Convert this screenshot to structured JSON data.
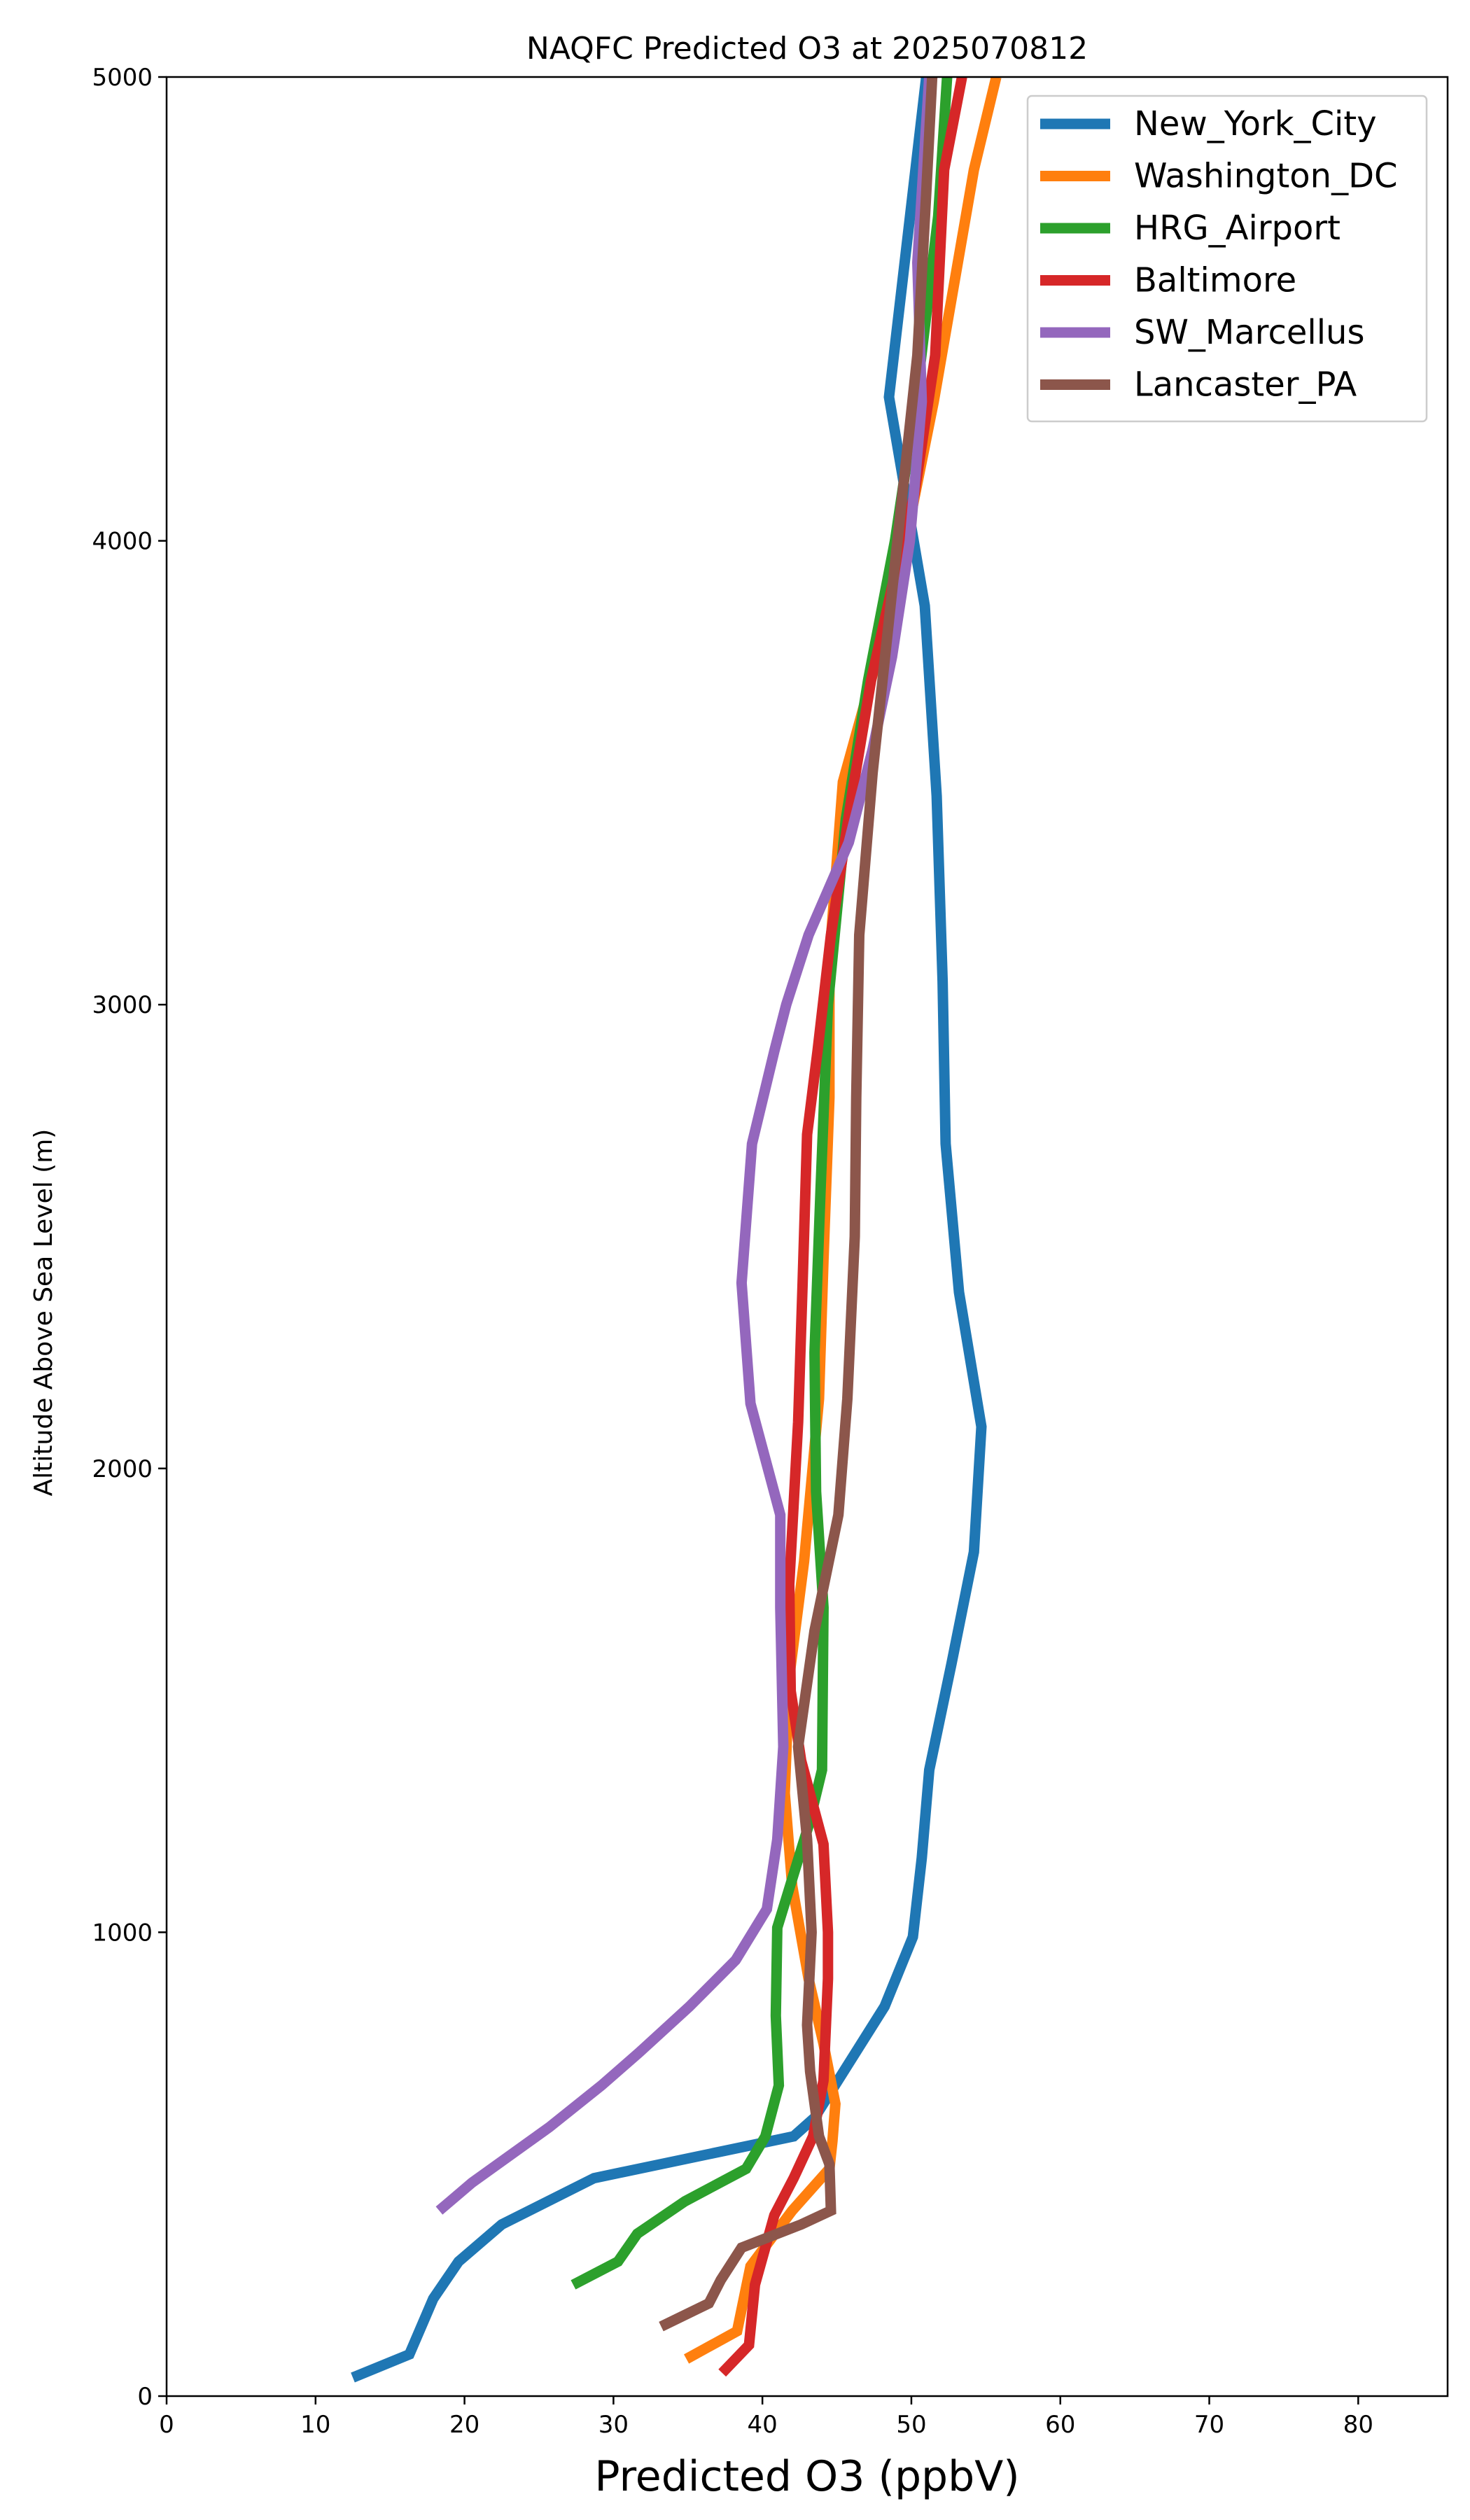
{
  "chart_data": {
    "type": "line",
    "title": "NAQFC Predicted O3 at 2025070812",
    "xlabel": "Predicted O3 (ppbV)",
    "ylabel": "Altitude Above Sea Level (m)",
    "xlim": [
      0,
      86
    ],
    "ylim": [
      0,
      5000
    ],
    "xticks": [
      0,
      10,
      20,
      30,
      40,
      50,
      60,
      70,
      80
    ],
    "yticks": [
      0,
      1000,
      2000,
      3000,
      4000,
      5000
    ],
    "xtick_labels": [
      "0",
      "10",
      "20",
      "30",
      "40",
      "50",
      "60",
      "70",
      "80"
    ],
    "ytick_labels": [
      "0",
      "1000",
      "2000",
      "3000",
      "4000",
      "5000"
    ],
    "grid": false,
    "legend_position": "top-right",
    "series": [
      {
        "name": "New_York_City",
        "color": "#1f77b4",
        "points": [
          [
            12.5,
            40
          ],
          [
            16.3,
            90
          ],
          [
            17.9,
            210
          ],
          [
            19.6,
            290
          ],
          [
            22.5,
            370
          ],
          [
            28.7,
            470
          ],
          [
            42.1,
            560
          ],
          [
            43.5,
            600
          ],
          [
            48.2,
            840
          ],
          [
            50.1,
            990
          ],
          [
            50.7,
            1160
          ],
          [
            51.2,
            1350
          ],
          [
            52.7,
            1580
          ],
          [
            54.2,
            1820
          ],
          [
            54.7,
            2090
          ],
          [
            53.2,
            2380
          ],
          [
            52.3,
            2700
          ],
          [
            52.1,
            3050
          ],
          [
            51.7,
            3450
          ],
          [
            50.9,
            3860
          ],
          [
            48.5,
            4310
          ],
          [
            51.0,
            5000
          ]
        ]
      },
      {
        "name": "Washington_DC",
        "color": "#ff7f0e",
        "points": [
          [
            34.9,
            80
          ],
          [
            38.3,
            140
          ],
          [
            39.2,
            280
          ],
          [
            42.0,
            400
          ],
          [
            44.5,
            490
          ],
          [
            44.7,
            550
          ],
          [
            44.9,
            630
          ],
          [
            44.1,
            760
          ],
          [
            43.1,
            900
          ],
          [
            42.0,
            1100
          ],
          [
            41.5,
            1300
          ],
          [
            41.8,
            1550
          ],
          [
            42.8,
            1800
          ],
          [
            43.8,
            2150
          ],
          [
            44.1,
            2450
          ],
          [
            44.5,
            2800
          ],
          [
            44.5,
            3100
          ],
          [
            45.4,
            3480
          ],
          [
            47.3,
            3700
          ],
          [
            49.0,
            3900
          ],
          [
            51.5,
            4300
          ],
          [
            54.2,
            4800
          ],
          [
            55.7,
            5000
          ]
        ]
      },
      {
        "name": "HRG_Airport",
        "color": "#2ca02c",
        "points": [
          [
            27.3,
            240
          ],
          [
            30.3,
            290
          ],
          [
            31.6,
            350
          ],
          [
            34.8,
            420
          ],
          [
            38.9,
            490
          ],
          [
            40.2,
            560
          ],
          [
            41.1,
            670
          ],
          [
            40.9,
            820
          ],
          [
            41.0,
            1010
          ],
          [
            43.1,
            1230
          ],
          [
            44.0,
            1350
          ],
          [
            44.1,
            1700
          ],
          [
            43.6,
            1950
          ],
          [
            43.5,
            2250
          ],
          [
            43.9,
            2600
          ],
          [
            44.4,
            3000
          ],
          [
            45.6,
            3400
          ],
          [
            47.1,
            3700
          ],
          [
            48.9,
            4000
          ],
          [
            50.3,
            4300
          ],
          [
            51.8,
            4700
          ],
          [
            52.4,
            5000
          ]
        ]
      },
      {
        "name": "Baltimore",
        "color": "#d62728",
        "points": [
          [
            37.3,
            50
          ],
          [
            39.1,
            110
          ],
          [
            39.5,
            240
          ],
          [
            40.8,
            390
          ],
          [
            42.1,
            470
          ],
          [
            43.4,
            560
          ],
          [
            44.1,
            680
          ],
          [
            44.4,
            900
          ],
          [
            44.4,
            1000
          ],
          [
            44.1,
            1190
          ],
          [
            42.6,
            1370
          ],
          [
            41.9,
            1520
          ],
          [
            41.8,
            1750
          ],
          [
            42.4,
            2100
          ],
          [
            42.7,
            2400
          ],
          [
            43.0,
            2720
          ],
          [
            43.7,
            2900
          ],
          [
            44.6,
            3150
          ],
          [
            46.0,
            3450
          ],
          [
            47.3,
            3700
          ],
          [
            48.7,
            3900
          ],
          [
            50.2,
            4100
          ],
          [
            51.6,
            4400
          ],
          [
            52.2,
            4800
          ],
          [
            53.4,
            5000
          ]
        ]
      },
      {
        "name": "SW_Marcellus",
        "color": "#9467bd",
        "points": [
          [
            18.3,
            400
          ],
          [
            20.5,
            460
          ],
          [
            25.7,
            580
          ],
          [
            29.2,
            670
          ],
          [
            31.7,
            740
          ],
          [
            35.1,
            840
          ],
          [
            38.2,
            940
          ],
          [
            40.3,
            1050
          ],
          [
            41.0,
            1200
          ],
          [
            41.4,
            1400
          ],
          [
            41.2,
            1700
          ],
          [
            41.2,
            1900
          ],
          [
            39.2,
            2140
          ],
          [
            38.6,
            2400
          ],
          [
            39.3,
            2700
          ],
          [
            40.8,
            2900
          ],
          [
            41.6,
            3000
          ],
          [
            43.1,
            3150
          ],
          [
            45.8,
            3350
          ],
          [
            47.4,
            3550
          ],
          [
            48.7,
            3750
          ],
          [
            49.9,
            4000
          ],
          [
            50.7,
            4300
          ],
          [
            50.4,
            4600
          ],
          [
            51.2,
            5000
          ]
        ]
      },
      {
        "name": "Lancaster_PA",
        "color": "#8c564b",
        "points": [
          [
            33.2,
            150
          ],
          [
            36.4,
            200
          ],
          [
            37.2,
            250
          ],
          [
            38.6,
            320
          ],
          [
            42.6,
            370
          ],
          [
            44.6,
            400
          ],
          [
            44.5,
            500
          ],
          [
            43.8,
            560
          ],
          [
            43.2,
            700
          ],
          [
            43.0,
            800
          ],
          [
            43.3,
            1000
          ],
          [
            43.0,
            1200
          ],
          [
            42.4,
            1400
          ],
          [
            43.5,
            1650
          ],
          [
            45.1,
            1900
          ],
          [
            45.7,
            2150
          ],
          [
            46.2,
            2500
          ],
          [
            46.3,
            2800
          ],
          [
            46.5,
            3150
          ],
          [
            47.4,
            3500
          ],
          [
            48.4,
            3800
          ],
          [
            49.4,
            4100
          ],
          [
            50.4,
            4400
          ],
          [
            51.0,
            4750
          ],
          [
            51.4,
            5000
          ]
        ]
      }
    ]
  }
}
